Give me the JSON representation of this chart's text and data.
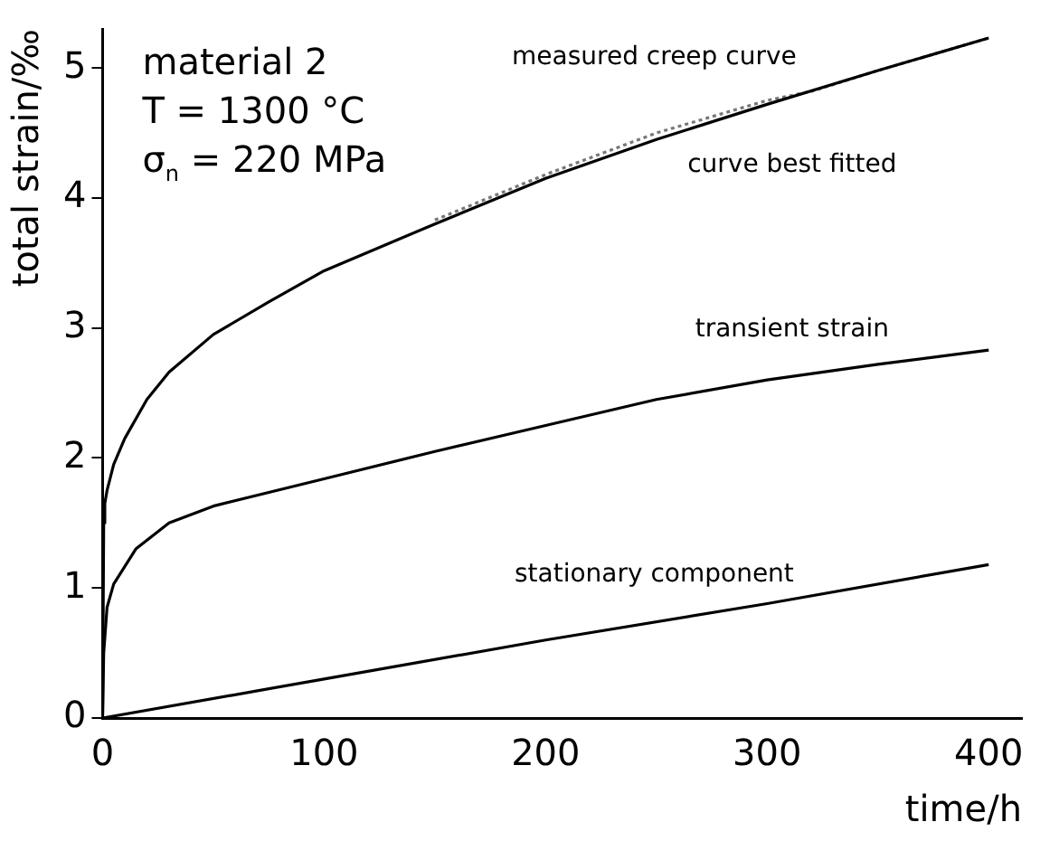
{
  "chart_data": {
    "type": "line",
    "xlabel": "time/h",
    "ylabel": "total strain/‰",
    "xlim": [
      0,
      415
    ],
    "xticks": [
      0,
      100,
      200,
      300,
      400
    ],
    "ylim": [
      0,
      5.3
    ],
    "yticks": [
      0,
      1,
      2,
      3,
      4,
      5
    ],
    "grid": false,
    "legend": false,
    "marker": "none",
    "series": [
      {
        "name": "curve best fitted",
        "color": "#000000",
        "line_style": "solid",
        "x": [
          0,
          0.5,
          1,
          2,
          5,
          10,
          20,
          30,
          50,
          75,
          100,
          150,
          200,
          250,
          300,
          350,
          400
        ],
        "values": [
          0,
          1.5,
          1.65,
          1.75,
          1.95,
          2.15,
          2.45,
          2.66,
          2.95,
          3.2,
          3.44,
          3.8,
          4.15,
          4.45,
          4.72,
          4.98,
          5.23
        ]
      },
      {
        "name": "measured creep curve",
        "color": "#777777",
        "line_style": "dotted",
        "x": [
          150,
          200,
          250,
          300,
          320,
          350,
          400
        ],
        "values": [
          3.83,
          4.18,
          4.5,
          4.75,
          4.82,
          4.98,
          5.23
        ]
      },
      {
        "name": "transient strain",
        "color": "#000000",
        "line_style": "solid",
        "x": [
          0,
          0.5,
          2,
          5,
          15,
          30,
          50,
          100,
          150,
          200,
          250,
          300,
          350,
          400
        ],
        "values": [
          0,
          0.5,
          0.85,
          1.03,
          1.3,
          1.5,
          1.63,
          1.84,
          2.05,
          2.25,
          2.45,
          2.6,
          2.72,
          2.83
        ]
      },
      {
        "name": "stationary component",
        "color": "#000000",
        "line_style": "solid",
        "x": [
          0,
          100,
          200,
          300,
          400
        ],
        "values": [
          0,
          0.3,
          0.6,
          0.88,
          1.18
        ]
      }
    ],
    "annotations": [
      "material 2",
      "T = 1300 °C",
      "σ$_{n}$ = 220 MPa"
    ]
  }
}
